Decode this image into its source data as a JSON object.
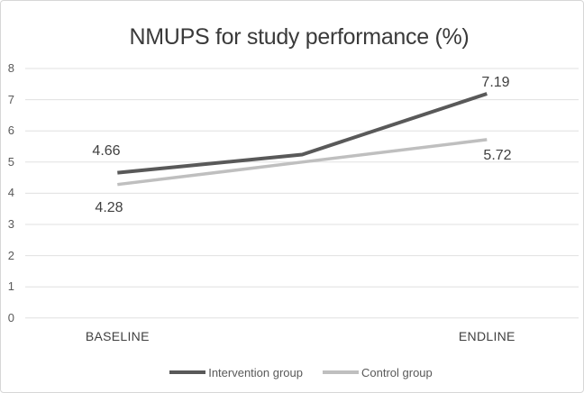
{
  "chart_data": {
    "type": "line",
    "title": "NMUPS for study performance (%)",
    "categories": [
      "BASELINE",
      "",
      "ENDLINE"
    ],
    "ylim": [
      0,
      8
    ],
    "yticks": [
      "0",
      "1",
      "2",
      "3",
      "4",
      "5",
      "6",
      "7",
      "8"
    ],
    "grid": true,
    "legend_position": "bottom",
    "series": [
      {
        "name": "Intervention group",
        "color": "#595959",
        "values": [
          4.66,
          5.24,
          7.19
        ],
        "point_labels": [
          "4.66",
          "",
          "7.19"
        ]
      },
      {
        "name": "Control group",
        "color": "#bfbfbf",
        "values": [
          4.28,
          5.0,
          5.72
        ],
        "point_labels": [
          "4.28",
          "",
          "5.72"
        ]
      }
    ],
    "colors": {
      "gridline": "#e0e0e0",
      "axis_text": "#595959",
      "label_text": "#404040",
      "title_text": "#3a3a3a"
    }
  }
}
